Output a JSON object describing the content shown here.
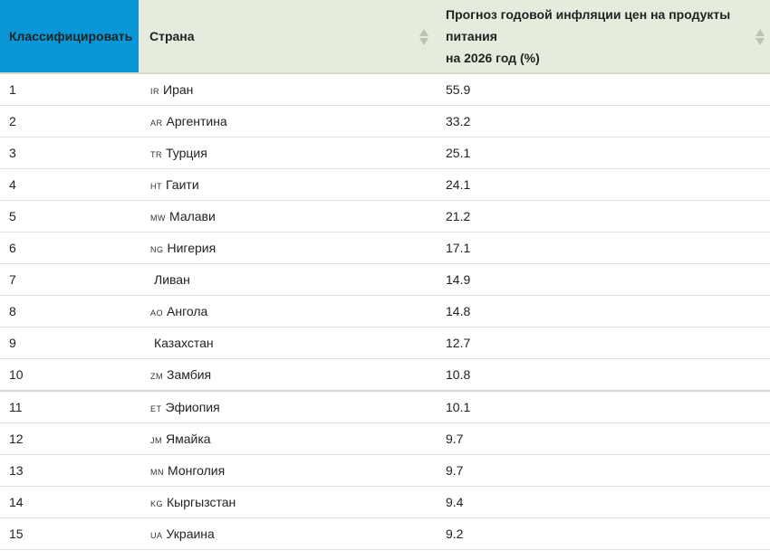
{
  "header": {
    "rank": "Классифицировать",
    "country": "Страна",
    "value_line1": "Прогноз годовой инфляции цен на продукты",
    "value_line2": "питания",
    "value_line3": "на 2026 год (%)"
  },
  "rows": [
    {
      "rank": "1",
      "code": "IR",
      "country": "Иран",
      "value": "55.9"
    },
    {
      "rank": "2",
      "code": "AR",
      "country": "Аргентина",
      "value": "33.2"
    },
    {
      "rank": "3",
      "code": "TR",
      "country": "Турция",
      "value": "25.1"
    },
    {
      "rank": "4",
      "code": "HT",
      "country": "Гаити",
      "value": "24.1"
    },
    {
      "rank": "5",
      "code": "MW",
      "country": "Малави",
      "value": "21.2"
    },
    {
      "rank": "6",
      "code": "NG",
      "country": "Нигерия",
      "value": "17.1"
    },
    {
      "rank": "7",
      "code": "",
      "country": "Ливан",
      "value": "14.9"
    },
    {
      "rank": "8",
      "code": "AO",
      "country": "Ангола",
      "value": "14.8"
    },
    {
      "rank": "9",
      "code": "",
      "country": "Казахстан",
      "value": "12.7"
    },
    {
      "rank": "10",
      "code": "ZM",
      "country": "Замбия",
      "value": "10.8"
    },
    {
      "rank": "11",
      "code": "ET",
      "country": "Эфиопия",
      "value": "10.1"
    },
    {
      "rank": "12",
      "code": "JM",
      "country": "Ямайка",
      "value": "9.7"
    },
    {
      "rank": "13",
      "code": "MN",
      "country": "Монголия",
      "value": "9.7"
    },
    {
      "rank": "14",
      "code": "KG",
      "country": "Кыргызстан",
      "value": "9.4"
    },
    {
      "rank": "15",
      "code": "UA",
      "country": "Украина",
      "value": "9.2"
    }
  ],
  "colors": {
    "rank_header": "#0a97d8",
    "header_bg": "#e6ecdd"
  }
}
